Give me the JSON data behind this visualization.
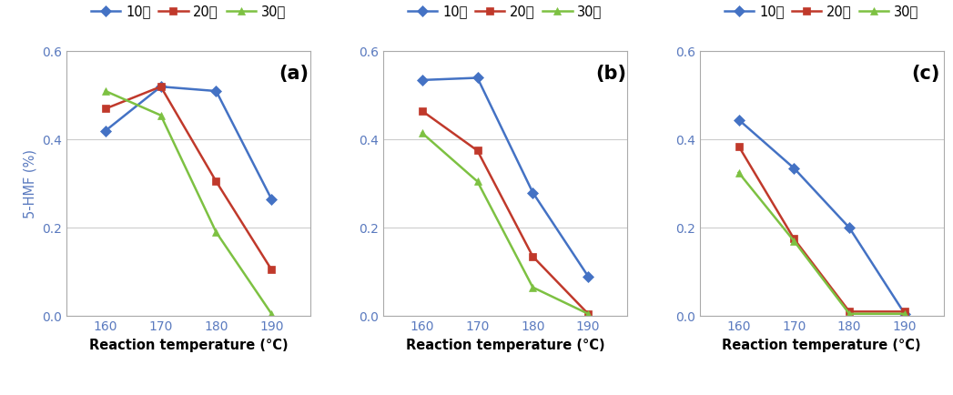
{
  "x": [
    160,
    170,
    180,
    190
  ],
  "panels": [
    {
      "label": "(a)",
      "series": {
        "10분": [
          0.42,
          0.52,
          0.51,
          0.265
        ],
        "20분": [
          0.47,
          0.52,
          0.305,
          0.105
        ],
        "30분": [
          0.51,
          0.455,
          0.19,
          0.005
        ]
      }
    },
    {
      "label": "(b)",
      "series": {
        "10분": [
          0.535,
          0.54,
          0.28,
          0.09
        ],
        "20분": [
          0.465,
          0.375,
          0.135,
          0.005
        ],
        "30분": [
          0.415,
          0.305,
          0.065,
          0.005
        ]
      }
    },
    {
      "label": "(c)",
      "series": {
        "10분": [
          0.445,
          0.335,
          0.2,
          0.005
        ],
        "20분": [
          0.385,
          0.175,
          0.01,
          0.01
        ],
        "30분": [
          0.325,
          0.17,
          0.005,
          0.005
        ]
      }
    }
  ],
  "series_names": [
    "10분",
    "20분",
    "30분"
  ],
  "colors": [
    "#4472C4",
    "#C0392B",
    "#7DC142"
  ],
  "markers": [
    "D",
    "s",
    "^"
  ],
  "xlabel": "Reaction temperature (°C)",
  "ylabel": "5-HMF (%)",
  "ylim": [
    0.0,
    0.6
  ],
  "yticks": [
    0.0,
    0.2,
    0.4,
    0.6
  ],
  "xticks": [
    160,
    170,
    180,
    190
  ],
  "background_color": "#ffffff",
  "grid_color": "#cccccc",
  "label_fontsize": 10.5,
  "tick_fontsize": 10,
  "legend_fontsize": 10.5,
  "panel_label_fontsize": 15
}
